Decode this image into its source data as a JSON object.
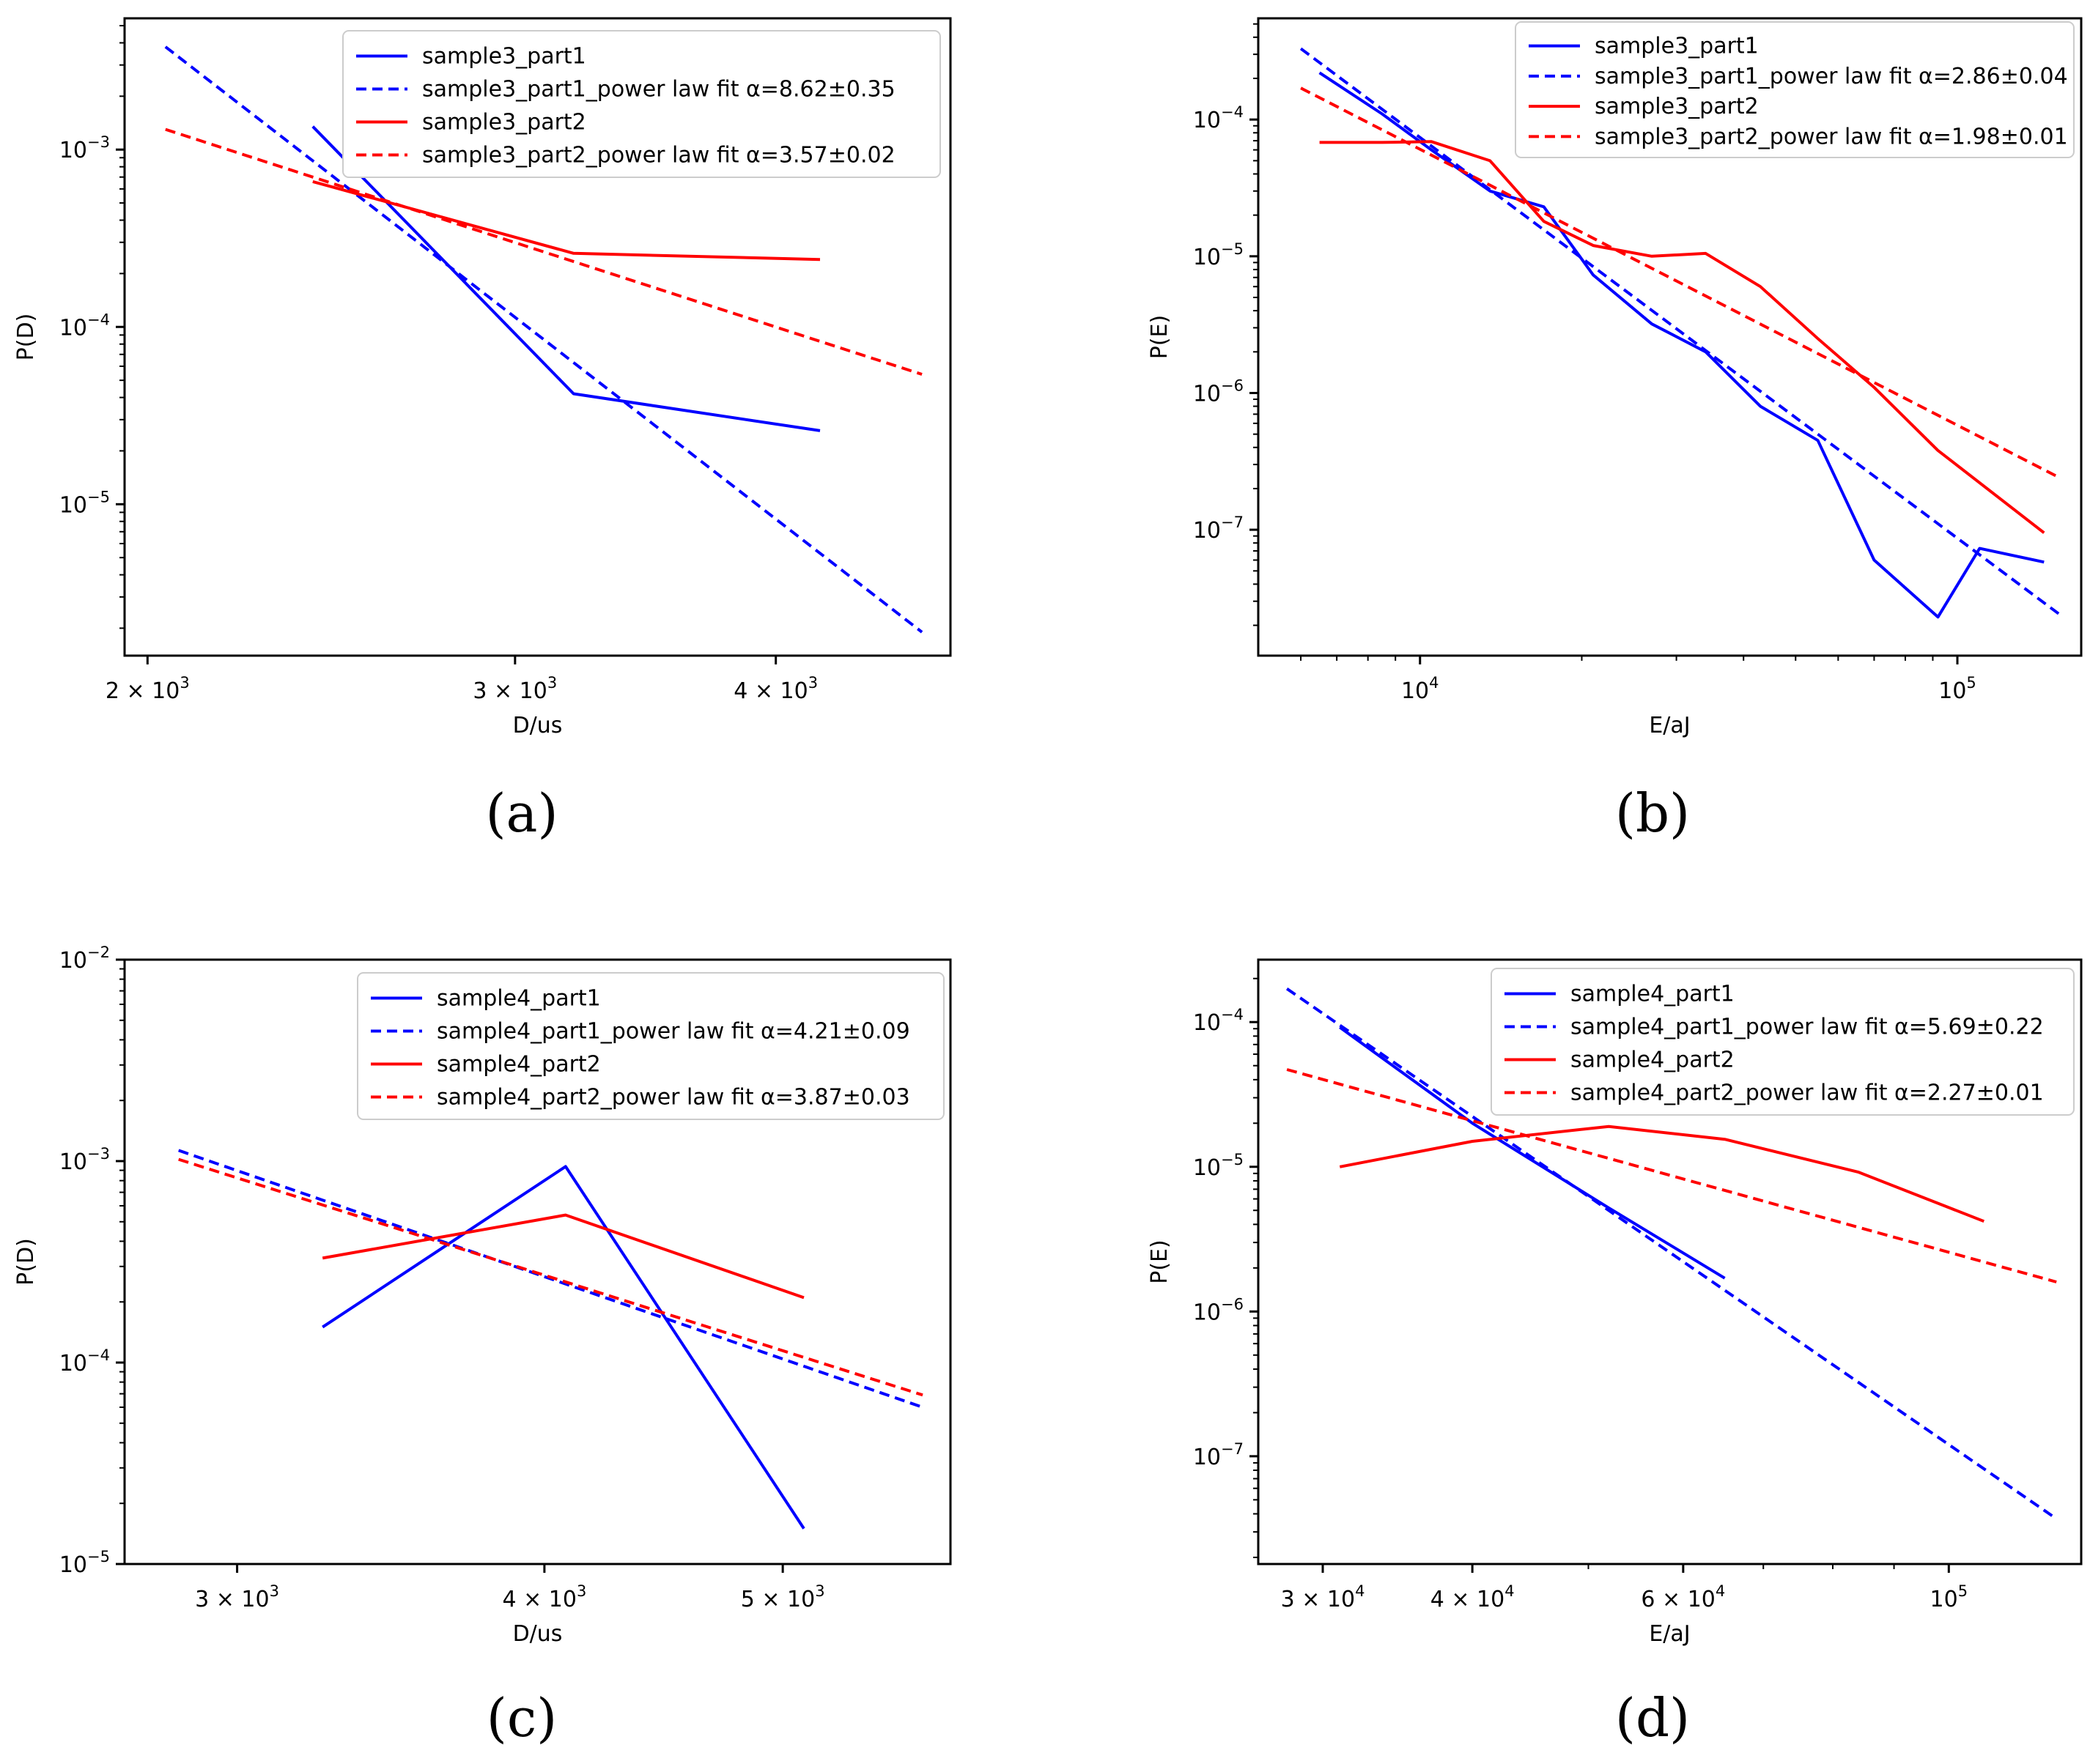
{
  "figure": {
    "colors": {
      "blue": "#0000ff",
      "red": "#ff0000",
      "axis": "#000000"
    }
  },
  "chart_data": [
    {
      "id": "a",
      "panel_label": "(a)",
      "type": "line",
      "xscale": "log",
      "yscale": "log",
      "xlim": [
        1950,
        4850
      ],
      "ylim": [
        1.4e-06,
        0.0055
      ],
      "xlabel": "D/us",
      "ylabel": "P(D)",
      "xticks": [
        {
          "value": 2000,
          "mantissa": "2 × 10",
          "exp": "3"
        },
        {
          "value": 3000,
          "mantissa": "3 × 10",
          "exp": "3"
        },
        {
          "value": 4000,
          "mantissa": "4 × 10",
          "exp": "3"
        }
      ],
      "yticks": [
        {
          "value": 1e-05,
          "mantissa": "10",
          "exp": "−5"
        },
        {
          "value": 0.0001,
          "mantissa": "10",
          "exp": "−4"
        },
        {
          "value": 0.001,
          "mantissa": "10",
          "exp": "−3"
        }
      ],
      "legend_position": "top-right",
      "series": [
        {
          "name": "sample3_part1",
          "color": "#0000ff",
          "style": "solid",
          "x": [
            2400,
            3200,
            4200
          ],
          "y": [
            0.00135,
            4.2e-05,
            2.6e-05
          ]
        },
        {
          "name": "sample3_part1_power law fit α=8.62±0.35",
          "color": "#0000ff",
          "style": "dashed",
          "x": [
            2040,
            4700
          ],
          "y": [
            0.0038,
            1.9e-06
          ]
        },
        {
          "name": "sample3_part2",
          "color": "#ff0000",
          "style": "solid",
          "x": [
            2400,
            3200,
            4200
          ],
          "y": [
            0.00066,
            0.00026,
            0.00024
          ]
        },
        {
          "name": "sample3_part2_power law fit α=3.57±0.02",
          "color": "#ff0000",
          "style": "dashed",
          "x": [
            2040,
            4700
          ],
          "y": [
            0.0013,
            5.4e-05
          ]
        }
      ]
    },
    {
      "id": "b",
      "panel_label": "(b)",
      "type": "line",
      "xscale": "log",
      "yscale": "log",
      "xlim": [
        5000,
        170000
      ],
      "ylim": [
        1.2e-08,
        0.00055
      ],
      "xlabel": "E/aJ",
      "ylabel": "P(E)",
      "xticks": [
        {
          "value": 10000,
          "mantissa": "10",
          "exp": "4"
        },
        {
          "value": 100000,
          "mantissa": "10",
          "exp": "5"
        }
      ],
      "yticks": [
        {
          "value": 1e-07,
          "mantissa": "10",
          "exp": "−7"
        },
        {
          "value": 1e-06,
          "mantissa": "10",
          "exp": "−6"
        },
        {
          "value": 1e-05,
          "mantissa": "10",
          "exp": "−5"
        },
        {
          "value": 0.0001,
          "mantissa": "10",
          "exp": "−4"
        }
      ],
      "legend_position": "top-right",
      "series": [
        {
          "name": "sample3_part1",
          "color": "#0000ff",
          "style": "solid",
          "x": [
            6500,
            8500,
            10500,
            13500,
            17000,
            21000,
            27000,
            34000,
            43000,
            55000,
            70000,
            92000,
            110000,
            145000
          ],
          "y": [
            0.00022,
            0.00011,
            6e-05,
            3e-05,
            2.3e-05,
            7.3e-06,
            3.2e-06,
            2e-06,
            8e-07,
            4.5e-07,
            6e-08,
            2.3e-08,
            7.3e-08,
            5.8e-08
          ]
        },
        {
          "name": "sample3_part1_power law fit α=2.86±0.04",
          "color": "#0000ff",
          "style": "dashed",
          "x": [
            6000,
            155000
          ],
          "y": [
            0.00033,
            2.4e-08
          ]
        },
        {
          "name": "sample3_part2",
          "color": "#ff0000",
          "style": "solid",
          "x": [
            6500,
            8500,
            10500,
            13500,
            17000,
            21000,
            27000,
            34000,
            43000,
            55000,
            70000,
            92000,
            145000
          ],
          "y": [
            6.8e-05,
            6.8e-05,
            6.9e-05,
            5e-05,
            1.8e-05,
            1.2e-05,
            1e-05,
            1.05e-05,
            6e-06,
            2.5e-06,
            1.1e-06,
            3.8e-07,
            9.5e-08
          ]
        },
        {
          "name": "sample3_part2_power law fit α=1.98±0.01",
          "color": "#ff0000",
          "style": "dashed",
          "x": [
            6000,
            155000
          ],
          "y": [
            0.00017,
            2.4e-07
          ]
        }
      ]
    },
    {
      "id": "c",
      "panel_label": "(c)",
      "type": "line",
      "xscale": "log",
      "yscale": "log",
      "xlim": [
        2700,
        5850
      ],
      "ylim": [
        1e-05,
        0.01
      ],
      "xlabel": "D/us",
      "ylabel": "P(D)",
      "xticks": [
        {
          "value": 3000,
          "mantissa": "3 × 10",
          "exp": "3"
        },
        {
          "value": 4000,
          "mantissa": "4 × 10",
          "exp": "3"
        },
        {
          "value": 5000,
          "mantissa": "5 × 10",
          "exp": "3"
        }
      ],
      "yticks": [
        {
          "value": 1e-05,
          "mantissa": "10",
          "exp": "−5"
        },
        {
          "value": 0.0001,
          "mantissa": "10",
          "exp": "−4"
        },
        {
          "value": 0.001,
          "mantissa": "10",
          "exp": "−3"
        },
        {
          "value": 0.01,
          "mantissa": "10",
          "exp": "−2"
        }
      ],
      "legend_position": "top-right",
      "series": [
        {
          "name": "sample4_part1",
          "color": "#0000ff",
          "style": "solid",
          "x": [
            3250,
            4080,
            5100
          ],
          "y": [
            0.00015,
            0.00094,
            1.5e-05
          ]
        },
        {
          "name": "sample4_part1_power law fit α=4.21±0.09",
          "color": "#0000ff",
          "style": "dashed",
          "x": [
            2840,
            5700
          ],
          "y": [
            0.00113,
            6e-05
          ]
        },
        {
          "name": "sample4_part2",
          "color": "#ff0000",
          "style": "solid",
          "x": [
            3250,
            4080,
            5100
          ],
          "y": [
            0.00033,
            0.00054,
            0.00021
          ]
        },
        {
          "name": "sample4_part2_power law fit α=3.87±0.03",
          "color": "#ff0000",
          "style": "dashed",
          "x": [
            2840,
            5700
          ],
          "y": [
            0.00102,
            6.9e-05
          ]
        }
      ]
    },
    {
      "id": "d",
      "panel_label": "(d)",
      "type": "line",
      "xscale": "log",
      "yscale": "log",
      "xlim": [
        26500,
        129000
      ],
      "ylim": [
        1.8e-08,
        0.00027
      ],
      "xlabel": "E/aJ",
      "ylabel": "P(E)",
      "xticks": [
        {
          "value": 30000,
          "mantissa": "3 × 10",
          "exp": "4"
        },
        {
          "value": 40000,
          "mantissa": "4 × 10",
          "exp": "4"
        },
        {
          "value": 60000,
          "mantissa": "6 × 10",
          "exp": "4"
        },
        {
          "value": 100000,
          "mantissa": "10",
          "exp": "5"
        }
      ],
      "yticks": [
        {
          "value": 1e-07,
          "mantissa": "10",
          "exp": "−7"
        },
        {
          "value": 1e-06,
          "mantissa": "10",
          "exp": "−6"
        },
        {
          "value": 1e-05,
          "mantissa": "10",
          "exp": "−5"
        },
        {
          "value": 0.0001,
          "mantissa": "10",
          "exp": "−4"
        }
      ],
      "legend_position": "top-right",
      "series": [
        {
          "name": "sample4_part1",
          "color": "#0000ff",
          "style": "solid",
          "x": [
            31000,
            40000,
            52000,
            65000
          ],
          "y": [
            9.2e-05,
            2e-05,
            5.2e-06,
            1.7e-06
          ]
        },
        {
          "name": "sample4_part1_power law fit α=5.69±0.22",
          "color": "#0000ff",
          "style": "dashed",
          "x": [
            28000,
            123000
          ],
          "y": [
            0.00017,
            3.7e-08
          ]
        },
        {
          "name": "sample4_part2",
          "color": "#ff0000",
          "style": "solid",
          "x": [
            31000,
            40000,
            52000,
            65000,
            84000,
            107000
          ],
          "y": [
            1e-05,
            1.5e-05,
            1.9e-05,
            1.55e-05,
            9.2e-06,
            4.2e-06
          ]
        },
        {
          "name": "sample4_part2_power law fit α=2.27±0.01",
          "color": "#ff0000",
          "style": "dashed",
          "x": [
            28000,
            123000
          ],
          "y": [
            4.7e-05,
            1.6e-06
          ]
        }
      ]
    }
  ]
}
